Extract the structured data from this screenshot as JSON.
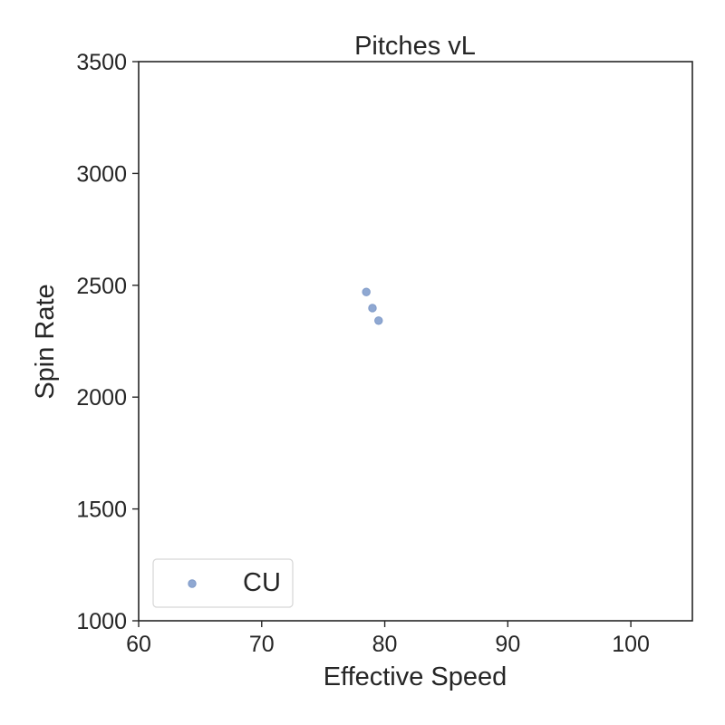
{
  "chart_data": {
    "type": "scatter",
    "title": "Pitches vL",
    "xlabel": "Effective Speed",
    "ylabel": "Spin Rate",
    "xlim": [
      60,
      105
    ],
    "ylim": [
      1000,
      3500
    ],
    "xticks": [
      60,
      70,
      80,
      90,
      100
    ],
    "yticks": [
      1000,
      1500,
      2000,
      2500,
      3000,
      3500
    ],
    "grid": false,
    "legend_position": "lower-left",
    "series": [
      {
        "name": "CU",
        "color": "#8fa8d2",
        "points": [
          {
            "x": 78.5,
            "y": 2470
          },
          {
            "x": 79.0,
            "y": 2398
          },
          {
            "x": 79.5,
            "y": 2342
          }
        ]
      }
    ]
  }
}
